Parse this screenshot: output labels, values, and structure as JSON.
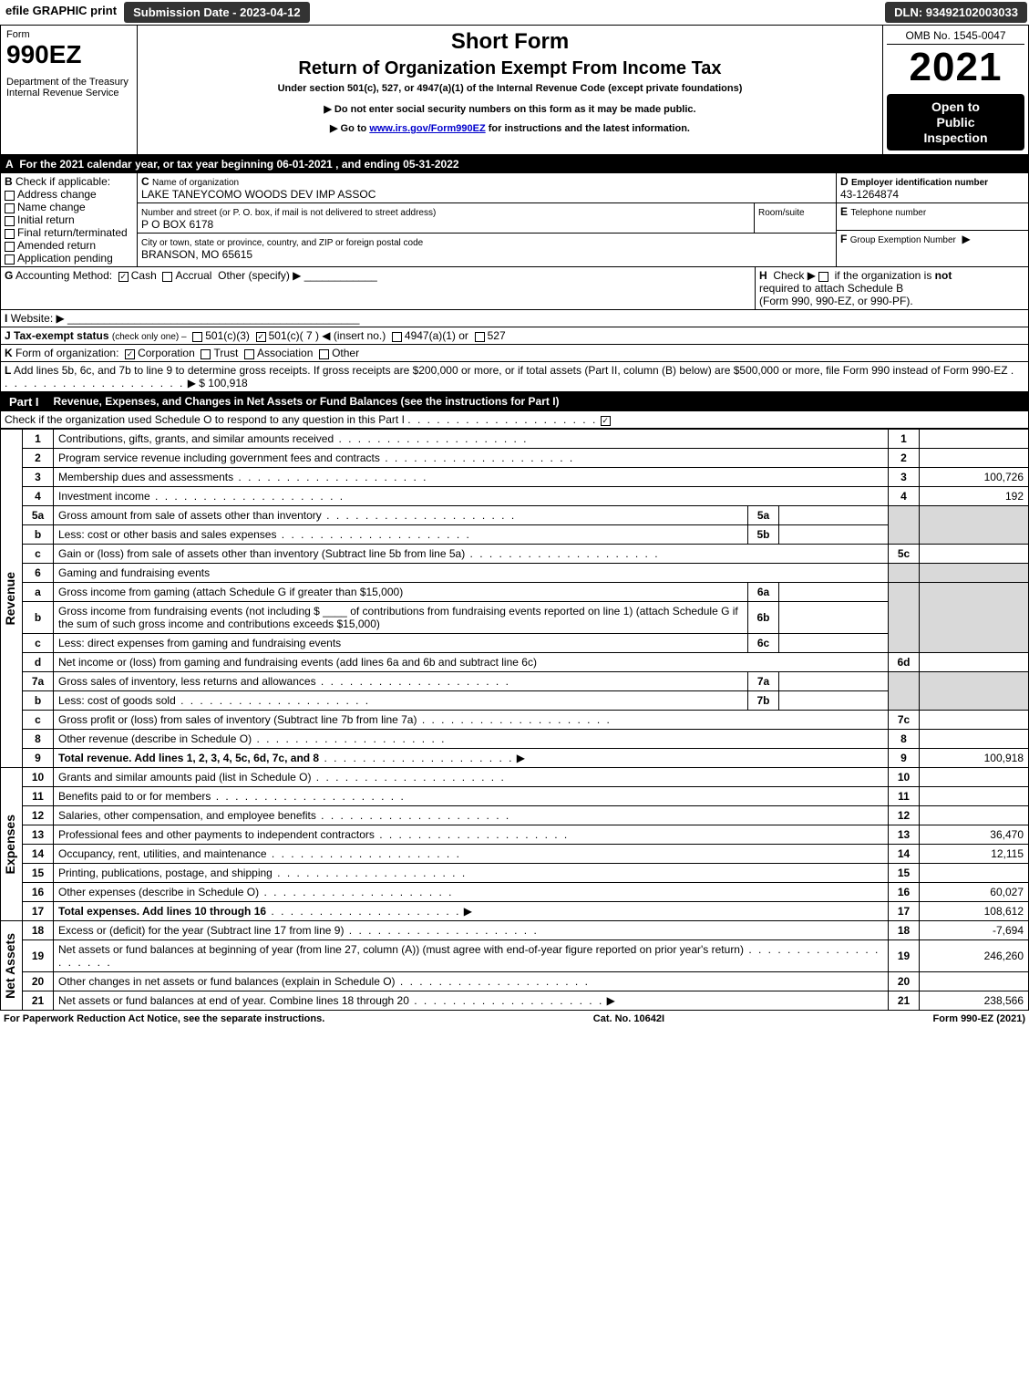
{
  "colors": {
    "black": "#000000",
    "white": "#ffffff",
    "grey": "#d9d9d9",
    "pill_bg": "#333333",
    "link_blue": "#0000cc"
  },
  "topbar": {
    "efile": "efile GRAPHIC print",
    "submission_label": "Submission Date - 2023-04-12",
    "dln": "DLN: 93492102003033"
  },
  "header": {
    "form_word": "Form",
    "form_number": "990EZ",
    "dept1": "Department of the Treasury",
    "dept2": "Internal Revenue Service",
    "short_form": "Short Form",
    "title": "Return of Organization Exempt From Income Tax",
    "subtitle": "Under section 501(c), 527, or 4947(a)(1) of the Internal Revenue Code (except private foundations)",
    "warn": "▶ Do not enter social security numbers on this form as it may be made public.",
    "goto_pre": "▶ Go to ",
    "goto_link": "www.irs.gov/Form990EZ",
    "goto_post": " for instructions and the latest information.",
    "omb": "OMB No. 1545-0047",
    "year": "2021",
    "open1": "Open to",
    "open2": "Public",
    "open3": "Inspection"
  },
  "A": {
    "text": "For the 2021 calendar year, or tax year beginning 06-01-2021 , and ending 05-31-2022"
  },
  "B": {
    "label": "Check if applicable:",
    "opts": [
      "Address change",
      "Name change",
      "Initial return",
      "Final return/terminated",
      "Amended return",
      "Application pending"
    ]
  },
  "C": {
    "name_label": "Name of organization",
    "name": "LAKE TANEYCOMO WOODS DEV IMP ASSOC",
    "street_label": "Number and street (or P. O. box, if mail is not delivered to street address)",
    "room_label": "Room/suite",
    "street": "P O BOX 6178",
    "city_label": "City or town, state or province, country, and ZIP or foreign postal code",
    "city": "BRANSON, MO  65615"
  },
  "D": {
    "label": "Employer identification number",
    "value": "43-1264874"
  },
  "E": {
    "label": "Telephone number",
    "value": ""
  },
  "F": {
    "label": "Group Exemption Number",
    "arrow": "▶"
  },
  "G": {
    "label": "Accounting Method:",
    "cash": "Cash",
    "accrual": "Accrual",
    "other": "Other (specify) ▶",
    "cash_checked": true
  },
  "H": {
    "text1": "Check ▶",
    "text2": "if the organization is ",
    "not": "not",
    "text3": "required to attach Schedule B",
    "text4": "(Form 990, 990-EZ, or 990-PF)."
  },
  "I": {
    "label": "Website: ▶"
  },
  "J": {
    "label": "Tax-exempt status",
    "note": "(check only one) ‒",
    "opt1": "501(c)(3)",
    "opt2": "501(c)( 7 ) ◀ (insert no.)",
    "opt2_checked": true,
    "opt3": "4947(a)(1) or",
    "opt4": "527"
  },
  "K": {
    "label": "Form of organization:",
    "corp": "Corporation",
    "corp_checked": true,
    "trust": "Trust",
    "assoc": "Association",
    "other": "Other"
  },
  "L": {
    "text": "Add lines 5b, 6c, and 7b to line 9 to determine gross receipts. If gross receipts are $200,000 or more, or if total assets (Part II, column (B) below) are $500,000 or more, file Form 990 instead of Form 990-EZ",
    "arrow": "▶",
    "amount": "$ 100,918"
  },
  "part1": {
    "label": "Part I",
    "title": "Revenue, Expenses, and Changes in Net Assets or Fund Balances (see the instructions for Part I)",
    "check_line": "Check if the organization used Schedule O to respond to any question in this Part I",
    "checked": true,
    "vlabels": {
      "rev": "Revenue",
      "exp": "Expenses",
      "net": "Net Assets"
    }
  },
  "revenue": [
    {
      "no": "1",
      "txt": "Contributions, gifts, grants, and similar amounts received",
      "rn": "1",
      "amt": ""
    },
    {
      "no": "2",
      "txt": "Program service revenue including government fees and contracts",
      "rn": "2",
      "amt": ""
    },
    {
      "no": "3",
      "txt": "Membership dues and assessments",
      "rn": "3",
      "amt": "100,726"
    },
    {
      "no": "4",
      "txt": "Investment income",
      "rn": "4",
      "amt": "192"
    }
  ],
  "line5": {
    "a_no": "5a",
    "a_txt": "Gross amount from sale of assets other than inventory",
    "a_rn": "5a",
    "b_no": "b",
    "b_txt": "Less: cost or other basis and sales expenses",
    "b_rn": "5b",
    "c_no": "c",
    "c_txt": "Gain or (loss) from sale of assets other than inventory (Subtract line 5b from line 5a)",
    "c_rn": "5c"
  },
  "line6": {
    "no": "6",
    "txt": "Gaming and fundraising events",
    "a_no": "a",
    "a_txt": "Gross income from gaming (attach Schedule G if greater than $15,000)",
    "a_rn": "6a",
    "b_no": "b",
    "b_txt_1": "Gross income from fundraising events (not including $",
    "b_txt_2": "of contributions from fundraising events reported on line 1) (attach Schedule G if the sum of such gross income and contributions exceeds $15,000)",
    "b_rn": "6b",
    "c_no": "c",
    "c_txt": "Less: direct expenses from gaming and fundraising events",
    "c_rn": "6c",
    "d_no": "d",
    "d_txt": "Net income or (loss) from gaming and fundraising events (add lines 6a and 6b and subtract line 6c)",
    "d_rn": "6d"
  },
  "line7": {
    "a_no": "7a",
    "a_txt": "Gross sales of inventory, less returns and allowances",
    "a_rn": "7a",
    "b_no": "b",
    "b_txt": "Less: cost of goods sold",
    "b_rn": "7b",
    "c_no": "c",
    "c_txt": "Gross profit or (loss) from sales of inventory (Subtract line 7b from line 7a)",
    "c_rn": "7c"
  },
  "line8": {
    "no": "8",
    "txt": "Other revenue (describe in Schedule O)",
    "rn": "8",
    "amt": ""
  },
  "line9": {
    "no": "9",
    "txt": "Total revenue. Add lines 1, 2, 3, 4, 5c, 6d, 7c, and 8",
    "rn": "9",
    "amt": "100,918",
    "arrow": "▶"
  },
  "expenses": [
    {
      "no": "10",
      "txt": "Grants and similar amounts paid (list in Schedule O)",
      "rn": "10",
      "amt": ""
    },
    {
      "no": "11",
      "txt": "Benefits paid to or for members",
      "rn": "11",
      "amt": ""
    },
    {
      "no": "12",
      "txt": "Salaries, other compensation, and employee benefits",
      "rn": "12",
      "amt": ""
    },
    {
      "no": "13",
      "txt": "Professional fees and other payments to independent contractors",
      "rn": "13",
      "amt": "36,470"
    },
    {
      "no": "14",
      "txt": "Occupancy, rent, utilities, and maintenance",
      "rn": "14",
      "amt": "12,115"
    },
    {
      "no": "15",
      "txt": "Printing, publications, postage, and shipping",
      "rn": "15",
      "amt": ""
    },
    {
      "no": "16",
      "txt": "Other expenses (describe in Schedule O)",
      "rn": "16",
      "amt": "60,027"
    },
    {
      "no": "17",
      "txt": "Total expenses. Add lines 10 through 16",
      "rn": "17",
      "amt": "108,612",
      "arrow": "▶"
    }
  ],
  "netassets": [
    {
      "no": "18",
      "txt": "Excess or (deficit) for the year (Subtract line 17 from line 9)",
      "rn": "18",
      "amt": "-7,694"
    },
    {
      "no": "19",
      "txt": "Net assets or fund balances at beginning of year (from line 27, column (A)) (must agree with end-of-year figure reported on prior year's return)",
      "rn": "19",
      "amt": "246,260"
    },
    {
      "no": "20",
      "txt": "Other changes in net assets or fund balances (explain in Schedule O)",
      "rn": "20",
      "amt": ""
    },
    {
      "no": "21",
      "txt": "Net assets or fund balances at end of year. Combine lines 18 through 20",
      "rn": "21",
      "amt": "238,566",
      "arrow": "▶"
    }
  ],
  "footer": {
    "left": "For Paperwork Reduction Act Notice, see the separate instructions.",
    "center": "Cat. No. 10642I",
    "right_pre": "Form ",
    "right_form": "990-EZ",
    "right_post": " (2021)"
  }
}
